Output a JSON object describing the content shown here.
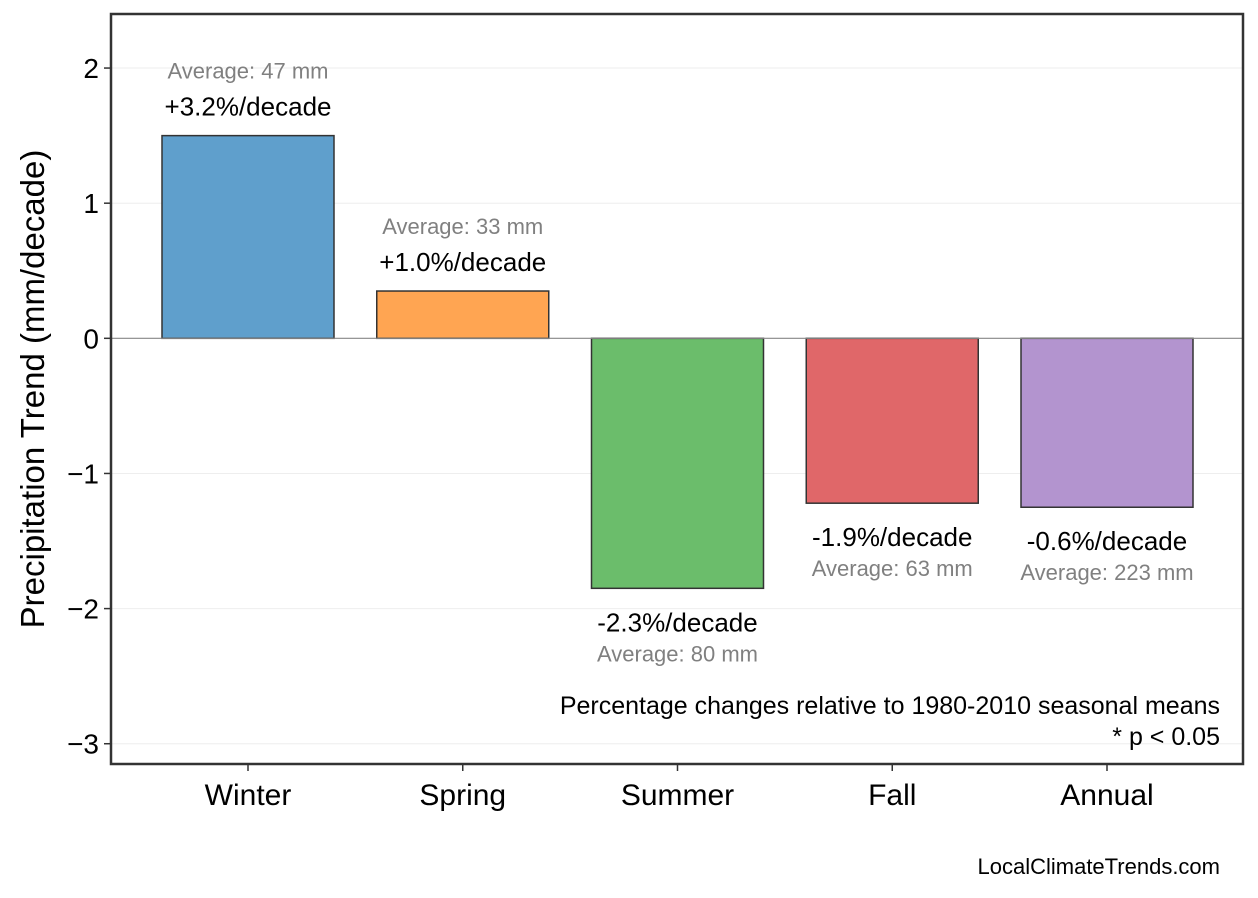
{
  "chart_data": {
    "type": "bar",
    "categories": [
      "Winter",
      "Spring",
      "Summer",
      "Fall",
      "Annual"
    ],
    "values": [
      1.5,
      0.35,
      -1.85,
      -1.22,
      -1.25
    ],
    "percent_labels": [
      "+3.2%/decade",
      "+1.0%/decade",
      "-2.3%/decade",
      "-1.9%/decade",
      "-0.6%/decade"
    ],
    "average_labels": [
      "Average: 47 mm",
      "Average: 33 mm",
      "Average: 80 mm",
      "Average: 63 mm",
      "Average: 223 mm"
    ],
    "colors": [
      "#5f9fcc",
      "#ffa552",
      "#6bbd6b",
      "#e06769",
      "#b394cf"
    ],
    "edge_color": "#333333",
    "ylabel": "Precipitation Trend (mm/decade)",
    "xlabel": "",
    "ylim": [
      -3.15,
      2.4
    ],
    "yticks": [
      2,
      1,
      0,
      -1,
      -2,
      -3
    ],
    "ytick_labels": [
      "2",
      "1",
      "0",
      "−1",
      "−2",
      "−3"
    ],
    "grid": true,
    "zero_line": true,
    "annotation_lines": [
      "Percentage changes relative to 1980-2010 seasonal means",
      "* p < 0.05"
    ],
    "source": "LocalClimateTrends.com"
  }
}
